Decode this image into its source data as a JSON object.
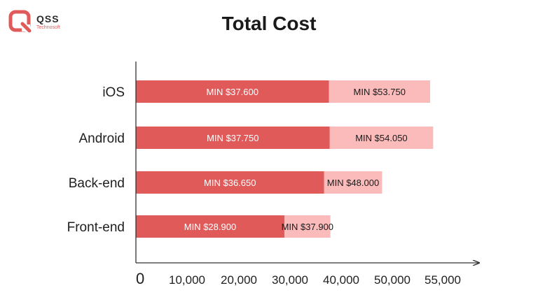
{
  "brand": {
    "name": "QSS",
    "sub": "Technosoft"
  },
  "colors": {
    "min": "#e05a5a",
    "max": "#fbbbbb",
    "axis": "#333333",
    "text": "#1f1f1f"
  },
  "chart_data": {
    "type": "bar",
    "orientation": "horizontal",
    "stacked": true,
    "title": "Total Cost",
    "categories": [
      "iOS",
      "Android",
      "Back-end",
      "Front-end"
    ],
    "series": [
      {
        "values": [
          37600,
          37750,
          36650,
          28900
        ],
        "labels": [
          "MIN $37.600",
          "MIN $37.750",
          "MIN $36.650",
          "MIN $28.900"
        ]
      },
      {
        "values": [
          53750,
          54050,
          48000,
          37900
        ],
        "labels": [
          "MIN $53.750",
          "MIN $54.050",
          "MIN $48.000",
          "MIN $37.900"
        ]
      }
    ],
    "xticks": [
      {
        "value": 0,
        "label": "0"
      },
      {
        "value": 10000,
        "label": "10,000"
      },
      {
        "value": 20000,
        "label": "20,000"
      },
      {
        "value": 30000,
        "label": "30,000"
      },
      {
        "value": 40000,
        "label": "40,000"
      },
      {
        "value": 50000,
        "label": "50,000"
      },
      {
        "value": 55000,
        "label": "55,000"
      }
    ],
    "grid": false,
    "legend": "none"
  }
}
